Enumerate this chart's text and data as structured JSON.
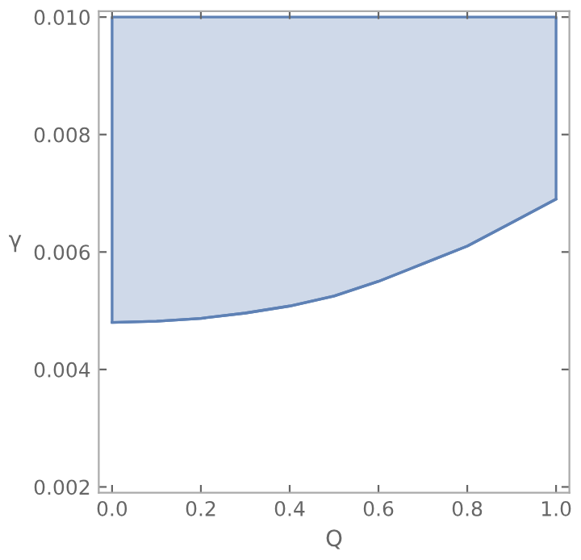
{
  "chart_data": {
    "type": "line",
    "xlabel": "Q",
    "ylabel": "γ",
    "series": [
      {
        "color": "#5e81b5",
        "x": [
          0,
          0.1,
          0.2,
          0.3,
          0.4,
          0.5,
          0.6,
          0.7,
          0.8,
          0.9,
          1.0
        ],
        "values": [
          0.0048,
          0.00482,
          0.00487,
          0.00496,
          0.00508,
          0.00525,
          0.0055,
          0.0058,
          0.0061,
          0.0065,
          0.0069
        ],
        "lower": [
          0.0048,
          0.00482,
          0.00487,
          0.00496,
          0.00508,
          0.00525,
          0.0055,
          0.0058,
          0.0061,
          0.0065,
          0.0069
        ],
        "upper": [
          0.01,
          0.01,
          0.01,
          0.01,
          0.01,
          0.01,
          0.01,
          0.01,
          0.01,
          0.01,
          0.01
        ]
      }
    ],
    "xlim": [
      -0.03,
      1.03
    ],
    "ylim": [
      0.0019,
      0.0101
    ],
    "xticks": [
      {
        "value": 0,
        "label": "0.0"
      },
      0.2,
      0.4,
      0.6,
      0.8,
      {
        "value": 1,
        "label": "1.0"
      }
    ],
    "yticks": [
      0.002,
      0.004,
      0.006,
      0.008,
      {
        "value": 0.01,
        "label": "0.010"
      }
    ],
    "grid": false
  }
}
